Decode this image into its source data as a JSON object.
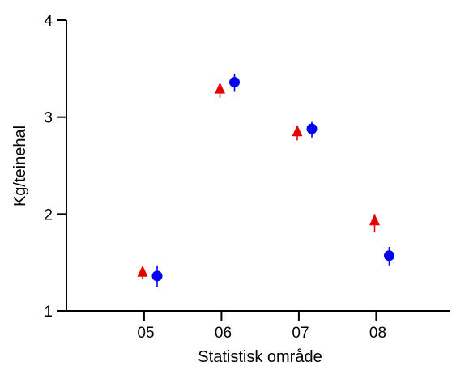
{
  "chart_data": {
    "type": "scatter",
    "title": "",
    "xlabel": "Statistisk område",
    "ylabel": "Kg/teinehal",
    "categories": [
      "05",
      "06",
      "07",
      "08"
    ],
    "ylim": [
      1,
      4
    ],
    "y_ticks": [
      "1",
      "2",
      "3",
      "4"
    ],
    "grid": false,
    "legend": "none",
    "error_bars": true,
    "series": [
      {
        "marker": "triangle",
        "color": "#e60000",
        "points": [
          {
            "category": "05",
            "y": 1.4,
            "err_low": 1.33,
            "err_high": 1.44
          },
          {
            "category": "06",
            "y": 3.29,
            "err_low": 3.2,
            "err_high": 3.32
          },
          {
            "category": "07",
            "y": 2.85,
            "err_low": 2.76,
            "err_high": 2.89
          },
          {
            "category": "08",
            "y": 1.93,
            "err_low": 1.81,
            "err_high": 2.0
          }
        ]
      },
      {
        "marker": "circle",
        "color": "#0000ee",
        "points": [
          {
            "category": "05",
            "y": 1.36,
            "err_low": 1.25,
            "err_high": 1.47
          },
          {
            "category": "06",
            "y": 3.36,
            "err_low": 3.26,
            "err_high": 3.45
          },
          {
            "category": "07",
            "y": 2.88,
            "err_low": 2.79,
            "err_high": 2.95
          },
          {
            "category": "08",
            "y": 1.57,
            "err_low": 1.47,
            "err_high": 1.66
          }
        ]
      }
    ]
  }
}
